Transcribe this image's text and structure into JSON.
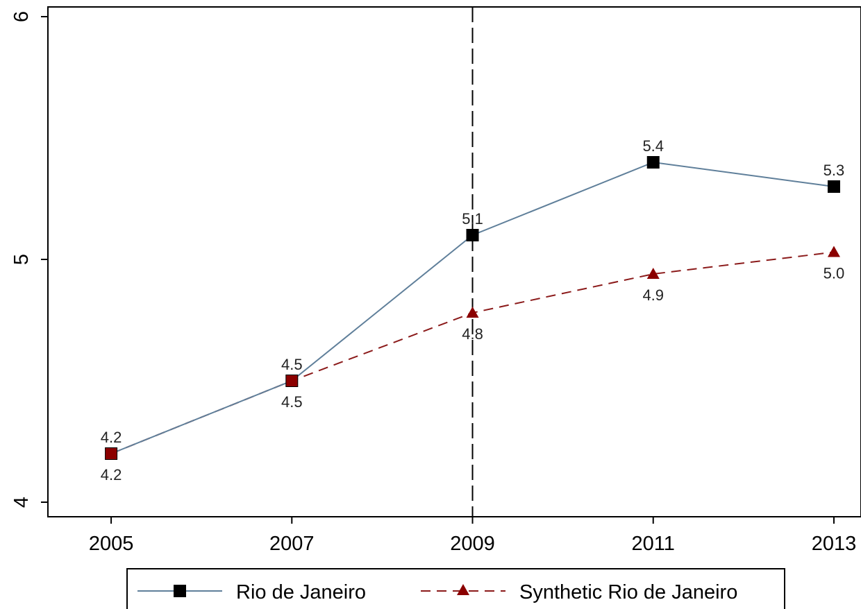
{
  "chart_data": {
    "type": "line",
    "title": "",
    "xlabel": "",
    "ylabel": "",
    "x": [
      2005,
      2007,
      2009,
      2011,
      2013
    ],
    "x_ticks": [
      "2005",
      "2007",
      "2009",
      "2011",
      "2013"
    ],
    "y_ticks": [
      "4",
      "5",
      "6"
    ],
    "y_tick_values": [
      4,
      5,
      6
    ],
    "ylim": [
      3.94,
      6.04
    ],
    "xlim": [
      2004.3,
      2013.3
    ],
    "grid": false,
    "vertical_reference_line": {
      "x": 2009,
      "style": "dashed",
      "color": "#000000"
    },
    "legend_position": "bottom",
    "series": [
      {
        "name": "Rio de Janeiro",
        "values": [
          4.2,
          4.5,
          5.1,
          5.4,
          5.3
        ],
        "labels": [
          "4.2",
          "4.5",
          "5.1",
          "5.4",
          "5.3"
        ],
        "marker": "square",
        "line_style": "solid",
        "line_color": "#5f7f9a",
        "marker_color": "#000000"
      },
      {
        "name": "Synthetic Rio de Janeiro",
        "values": [
          4.2,
          4.5,
          4.78,
          4.94,
          5.03
        ],
        "labels": [
          "4.2",
          "4.5",
          "4.8",
          "4.9",
          "5.0"
        ],
        "marker": "triangle",
        "line_style": "dashed",
        "line_color": "#8b1a1a",
        "marker_color": "#8b0000"
      }
    ]
  }
}
